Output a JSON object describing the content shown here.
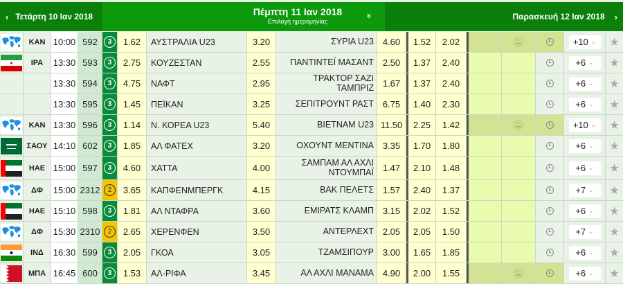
{
  "header": {
    "prev_label": "Τετάρτη 10 Ιαν 2018",
    "title": "Πέμπτη 11 Ιαν 2018",
    "subtitle": "Επιλογή ημερομηνίας",
    "next_label": "Παρασκευή 12 Ιαν 2018",
    "prev_arrow": "‹",
    "next_arrow": "›",
    "chevron": "»"
  },
  "colors": {
    "header": "#0c990c",
    "header_side": "#0a7f0a",
    "odds": "#ffffd0",
    "circle": "#0b8a3b",
    "circle_alt": "#f5c400"
  },
  "rows": [
    {
      "flag": "world",
      "country": "ΚΑΝ",
      "time": "10:00",
      "code": "592",
      "badge": "3",
      "o1": "1.62",
      "home": "ΑΥΣΤΡΑΛΙΑ U23",
      "ox": "3.20",
      "away": "ΣΥΡΙΑ U23",
      "o2": "4.60",
      "h1": "1.52",
      "h2": "2.02",
      "muted": true,
      "more": "+10"
    },
    {
      "flag": "iran",
      "country": "ΙΡΑ",
      "time": "13:30",
      "code": "593",
      "badge": "3",
      "o1": "2.75",
      "home": "ΚΟΥΖΕΣΤΑΝ",
      "ox": "2.55",
      "away": "ΠΑΝΤΙΝΤΕΪ ΜΑΣΑΝΤ",
      "o2": "2.50",
      "h1": "1.37",
      "h2": "2.40",
      "muted": false,
      "more": "+6"
    },
    {
      "flag": "",
      "country": "",
      "time": "13:30",
      "code": "594",
      "badge": "3",
      "o1": "4.75",
      "home": "ΝΑΦΤ",
      "ox": "2.95",
      "away": "ΤΡΑΚΤΟΡ ΣΑΖΙ ΤΑΜΠΡΙΖ",
      "o2": "1.67",
      "h1": "1.37",
      "h2": "2.40",
      "muted": false,
      "more": "+6"
    },
    {
      "flag": "",
      "country": "",
      "time": "13:30",
      "code": "595",
      "badge": "3",
      "o1": "1.45",
      "home": "ΠΕΪΚΑΝ",
      "ox": "3.25",
      "away": "ΣΕΠΙΤΡΟΥΝΤ ΡΑΣΤ",
      "o2": "6.75",
      "h1": "1.40",
      "h2": "2.30",
      "muted": false,
      "more": "+6"
    },
    {
      "flag": "world",
      "country": "ΚΑΝ",
      "time": "13:30",
      "code": "596",
      "badge": "3",
      "o1": "1.14",
      "home": "Ν. ΚΟΡΕΑ U23",
      "ox": "5.40",
      "away": "ΒΙΕΤΝΑΜ U23",
      "o2": "11.50",
      "h1": "2.25",
      "h2": "1.42",
      "muted": true,
      "more": "+10"
    },
    {
      "flag": "saudi",
      "country": "ΣΑΟΥ",
      "time": "14:10",
      "code": "602",
      "badge": "3",
      "o1": "1.85",
      "home": "ΑΛ ΦΑΤΕΧ",
      "ox": "3.20",
      "away": "ΟΧΟΥΝΤ ΜΕΝΤΙΝΑ",
      "o2": "3.35",
      "h1": "1.70",
      "h2": "1.80",
      "muted": false,
      "more": "+6"
    },
    {
      "flag": "uae",
      "country": "ΗΑΕ",
      "time": "15:00",
      "code": "597",
      "badge": "3",
      "o1": "4.60",
      "home": "ΧΑΤΤΑ",
      "ox": "4.00",
      "away": "ΣΑΜΠΑΜ ΑΛ ΑΧΛΙ ΝΤΟΥΜΠΑΪ",
      "o2": "1.47",
      "h1": "2.10",
      "h2": "1.48",
      "muted": false,
      "more": "+6"
    },
    {
      "flag": "world",
      "country": "ΔΦ",
      "time": "15:00",
      "code": "2312",
      "badge": "2",
      "o1": "3.65",
      "home": "ΚΑΠΦΕΝΜΠΕΡΓΚ",
      "ox": "4.15",
      "away": "ΒΑΚ ΠΕΛΕΤΣ",
      "o2": "1.57",
      "h1": "2.40",
      "h2": "1.37",
      "muted": false,
      "more": "+7"
    },
    {
      "flag": "uae",
      "country": "ΗΑΕ",
      "time": "15:10",
      "code": "598",
      "badge": "3",
      "o1": "1.81",
      "home": "ΑΛ ΝΤΑΦΡΑ",
      "ox": "3.60",
      "away": "ΕΜΙΡΑΤΣ ΚΛΑΜΠ",
      "o2": "3.15",
      "h1": "2.02",
      "h2": "1.52",
      "muted": false,
      "more": "+6"
    },
    {
      "flag": "world",
      "country": "ΔΦ",
      "time": "15:30",
      "code": "2310",
      "badge": "2",
      "o1": "2.65",
      "home": "ΧΕΡΕΝΦΕΝ",
      "ox": "3.50",
      "away": "ΑΝΤΕΡΛΕΧΤ",
      "o2": "2.05",
      "h1": "2.05",
      "h2": "1.50",
      "muted": false,
      "more": "+7"
    },
    {
      "flag": "india",
      "country": "ΙΝΔ",
      "time": "16:30",
      "code": "599",
      "badge": "3",
      "o1": "2.05",
      "home": "ΓΚΟΑ",
      "ox": "3.05",
      "away": "ΤΖΑΜΣΙΠΟΥΡ",
      "o2": "3.00",
      "h1": "1.65",
      "h2": "1.85",
      "muted": false,
      "more": "+6"
    },
    {
      "flag": "bahrain",
      "country": "ΜΠΑ",
      "time": "16:45",
      "code": "600",
      "badge": "3",
      "o1": "1.53",
      "home": "ΑΛ-ΡΙΦΑ",
      "ox": "3.45",
      "away": "ΑΛ ΑΧΛΙ ΜΑΝΑΜΑ",
      "o2": "4.90",
      "h1": "2.00",
      "h2": "1.55",
      "muted": true,
      "more": "+6"
    }
  ]
}
